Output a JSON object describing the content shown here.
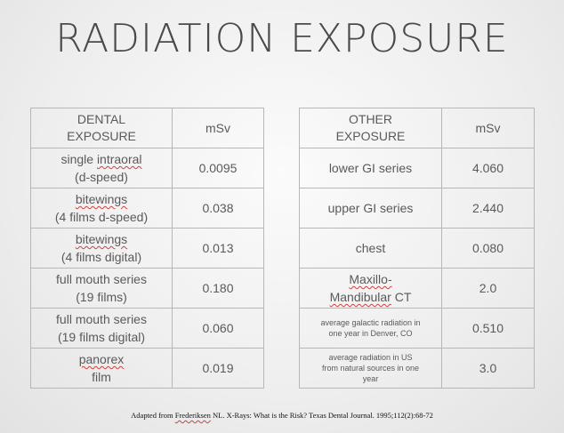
{
  "title": "RADIATION EXPOSURE",
  "dental_table": {
    "headers": [
      "DENTAL",
      "EXPOSURE",
      "mSv"
    ],
    "rows": [
      {
        "line1": "single ",
        "line1_mark": "intraoral",
        "line2": "(d-speed)",
        "value": "0.0095"
      },
      {
        "line1": "",
        "line1_mark": "bitewings",
        "line2": "(4 films d-speed)",
        "value": "0.038"
      },
      {
        "line1": "",
        "line1_mark": "bitewings",
        "line2": "(4 films digital)",
        "value": "0.013"
      },
      {
        "line1": "full mouth series",
        "line1_mark": "",
        "line2": "(19 films)",
        "value": "0.180"
      },
      {
        "line1": "full mouth series",
        "line1_mark": "",
        "line2": "(19 films digital)",
        "value": "0.060"
      },
      {
        "line1": "",
        "line1_mark": "panorex",
        "line2": "film",
        "value": "0.019"
      }
    ]
  },
  "other_table": {
    "headers": [
      "OTHER",
      "EXPOSURE",
      "mSv"
    ],
    "rows": [
      {
        "text": "lower GI series",
        "value": "4.060"
      },
      {
        "text": "upper GI series",
        "value": "2.440"
      },
      {
        "text": "chest",
        "value": "0.080"
      },
      {
        "line1": "Maxillo-",
        "line2": "Mandibular",
        "line2_suffix": " CT",
        "value": "2.0"
      },
      {
        "line1": "average galactic radiation in",
        "line2": "one year in Denver, CO",
        "value": "0.510"
      },
      {
        "line1": "average radiation in US",
        "line2": "from natural sources in one",
        "line3": "year",
        "value": "3.0"
      }
    ]
  },
  "citation": {
    "prefix": "Adapted from ",
    "author": "Frederiksen",
    "rest": " NL. X-Rays: What is the Risk? Texas Dental Journal. 1995;112(2):68-72"
  }
}
